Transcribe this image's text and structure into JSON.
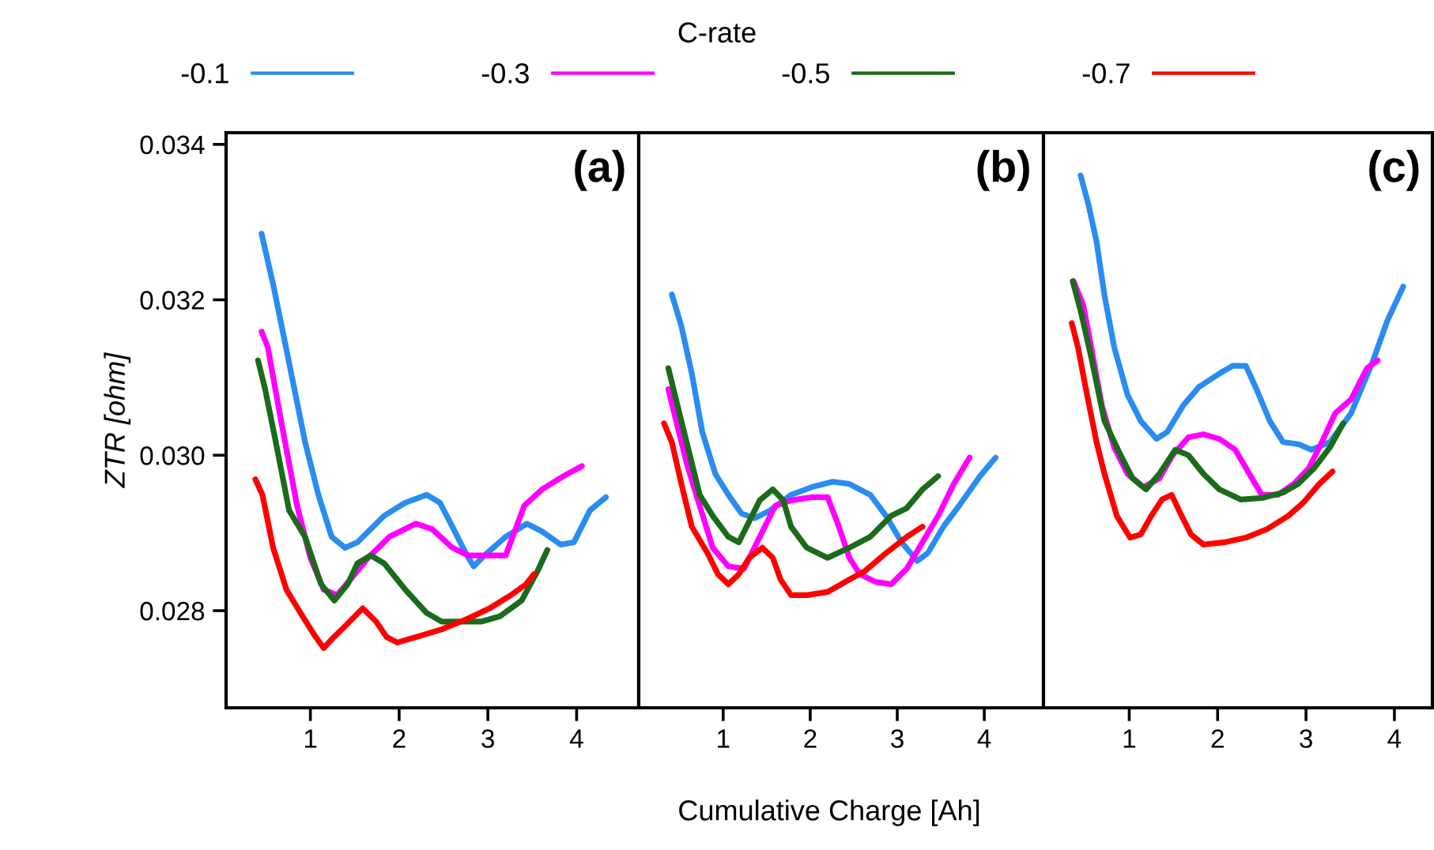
{
  "chart_data": [
    {
      "type": "line",
      "ylabel": "ZTR [ohm]",
      "legend_title": "C-rate",
      "legend": "top",
      "annotations": [
        "(a)"
      ],
      "xlim": [
        0.05,
        4.7
      ],
      "xticks": [
        1,
        2,
        3,
        4
      ],
      "ylim": [
        0.02675,
        0.03415
      ],
      "yticks": [
        {
          "value": 0.028,
          "label": "0.028"
        },
        {
          "value": 0.03,
          "label": "0.030"
        },
        {
          "value": 0.032,
          "label": "0.032"
        },
        {
          "value": 0.034,
          "label": "0.034"
        }
      ],
      "series": [
        {
          "name": "-0.1",
          "color": "#2a8cf0",
          "x": [
            0.45,
            0.58,
            0.76,
            0.94,
            1.09,
            1.24,
            1.39,
            1.53,
            1.83,
            2.07,
            2.31,
            2.46,
            2.6,
            2.75,
            2.84,
            2.96,
            3.2,
            3.44,
            3.61,
            3.82,
            3.97,
            4.15,
            4.33
          ],
          "values": [
            0.03285,
            0.0322,
            0.03119,
            0.03017,
            0.02949,
            0.02895,
            0.02881,
            0.02888,
            0.02922,
            0.02939,
            0.02949,
            0.02939,
            0.02908,
            0.02874,
            0.02857,
            0.02871,
            0.02895,
            0.02912,
            0.02902,
            0.02885,
            0.02888,
            0.02929,
            0.02946
          ]
        },
        {
          "name": "-0.3",
          "color": "#ff00ff",
          "x": [
            0.45,
            0.52,
            0.67,
            0.85,
            1.0,
            1.15,
            1.3,
            1.45,
            1.65,
            1.89,
            2.19,
            2.37,
            2.6,
            2.78,
            3.02,
            3.2,
            3.41,
            3.61,
            3.85,
            4.06
          ],
          "values": [
            0.03159,
            0.03139,
            0.03044,
            0.02935,
            0.02868,
            0.02827,
            0.0282,
            0.0284,
            0.02868,
            0.02895,
            0.02912,
            0.02905,
            0.02881,
            0.02871,
            0.02871,
            0.02871,
            0.02935,
            0.02956,
            0.02973,
            0.02986
          ]
        },
        {
          "name": "-0.5",
          "color": "#1a6b1a",
          "x": [
            0.41,
            0.49,
            0.61,
            0.76,
            0.94,
            1.12,
            1.27,
            1.42,
            1.53,
            1.68,
            1.83,
            2.07,
            2.31,
            2.48,
            2.72,
            2.93,
            3.14,
            3.38,
            3.56,
            3.67
          ],
          "values": [
            0.03122,
            0.03085,
            0.03017,
            0.02929,
            0.02895,
            0.02834,
            0.02813,
            0.02834,
            0.02861,
            0.02871,
            0.02861,
            0.02827,
            0.02797,
            0.02786,
            0.02786,
            0.02786,
            0.02793,
            0.02813,
            0.02851,
            0.02878
          ]
        },
        {
          "name": "-0.7",
          "color": "#ff0000",
          "x": [
            0.38,
            0.46,
            0.58,
            0.73,
            0.91,
            1.06,
            1.15,
            1.24,
            1.39,
            1.59,
            1.74,
            1.86,
            1.98,
            2.19,
            2.48,
            2.78,
            3.02,
            3.26,
            3.43,
            3.52
          ],
          "values": [
            0.02969,
            0.02949,
            0.02881,
            0.02827,
            0.02793,
            0.02766,
            0.02752,
            0.02763,
            0.0278,
            0.02803,
            0.02786,
            0.02766,
            0.02759,
            0.02766,
            0.02776,
            0.0279,
            0.02803,
            0.0282,
            0.02834,
            0.02847
          ]
        }
      ]
    },
    {
      "type": "line",
      "xlabel": "Cumulative Charge [Ah]",
      "annotations": [
        "(b)"
      ],
      "tick_labels": "x",
      "xlim": [
        0.03,
        4.68
      ],
      "xticks": [
        1,
        2,
        3,
        4
      ],
      "ylim": [
        0.02675,
        0.03415
      ],
      "series": [
        {
          "color": "#2a8cf0",
          "x": [
            0.41,
            0.52,
            0.64,
            0.76,
            0.91,
            1.06,
            1.21,
            1.36,
            1.54,
            1.78,
            2.02,
            2.26,
            2.45,
            2.69,
            2.87,
            3.05,
            3.23,
            3.35,
            3.53,
            3.71,
            3.95,
            4.13
          ],
          "values": [
            0.03207,
            0.03166,
            0.03105,
            0.0303,
            0.02976,
            0.02949,
            0.02925,
            0.02919,
            0.02929,
            0.02949,
            0.02959,
            0.02966,
            0.02963,
            0.02949,
            0.02922,
            0.02888,
            0.02864,
            0.02874,
            0.02908,
            0.02935,
            0.02973,
            0.02997
          ]
        },
        {
          "color": "#ff00ff",
          "x": [
            0.37,
            0.46,
            0.58,
            0.73,
            0.88,
            1.06,
            1.24,
            1.42,
            1.6,
            1.78,
            2.02,
            2.2,
            2.33,
            2.45,
            2.57,
            2.75,
            2.93,
            3.11,
            3.29,
            3.47,
            3.65,
            3.83
          ],
          "values": [
            0.03085,
            0.03044,
            0.0299,
            0.02935,
            0.02881,
            0.02857,
            0.02854,
            0.02895,
            0.02935,
            0.02942,
            0.02946,
            0.02946,
            0.02908,
            0.02868,
            0.02847,
            0.02837,
            0.02834,
            0.02854,
            0.02888,
            0.02922,
            0.02963,
            0.02997
          ]
        },
        {
          "color": "#1a6b1a",
          "x": [
            0.37,
            0.46,
            0.58,
            0.73,
            0.88,
            1.06,
            1.18,
            1.3,
            1.42,
            1.57,
            1.69,
            1.78,
            1.96,
            2.2,
            2.45,
            2.69,
            2.93,
            3.11,
            3.29,
            3.47
          ],
          "values": [
            0.03112,
            0.03071,
            0.03017,
            0.02949,
            0.02922,
            0.02895,
            0.02888,
            0.02915,
            0.02942,
            0.02956,
            0.02942,
            0.02908,
            0.02881,
            0.02868,
            0.02881,
            0.02895,
            0.02922,
            0.02932,
            0.02956,
            0.02973
          ]
        },
        {
          "color": "#ff0000",
          "x": [
            0.32,
            0.41,
            0.52,
            0.64,
            0.82,
            0.94,
            1.06,
            1.18,
            1.3,
            1.45,
            1.57,
            1.66,
            1.78,
            1.96,
            2.2,
            2.45,
            2.63,
            2.87,
            3.11,
            3.29
          ],
          "values": [
            0.03041,
            0.03017,
            0.02963,
            0.02908,
            0.02874,
            0.02847,
            0.02834,
            0.02847,
            0.02868,
            0.02881,
            0.02868,
            0.0284,
            0.0282,
            0.0282,
            0.02824,
            0.0284,
            0.02851,
            0.02874,
            0.02895,
            0.02908
          ]
        }
      ]
    },
    {
      "type": "line",
      "annotations": [
        "(c)"
      ],
      "tick_labels": "x",
      "xlim": [
        0.03,
        4.43
      ],
      "xticks": [
        1,
        2,
        3,
        4
      ],
      "ylim": [
        0.02675,
        0.03415
      ],
      "series": [
        {
          "color": "#2a8cf0",
          "x": [
            0.45,
            0.54,
            0.63,
            0.72,
            0.83,
            0.98,
            1.13,
            1.31,
            1.43,
            1.61,
            1.79,
            2.02,
            2.17,
            2.32,
            2.44,
            2.59,
            2.74,
            2.92,
            3.06,
            3.27,
            3.51,
            3.75,
            3.92,
            4.1
          ],
          "values": [
            0.0336,
            0.03322,
            0.03275,
            0.03206,
            0.03139,
            0.03078,
            0.03044,
            0.03021,
            0.0303,
            0.03064,
            0.03088,
            0.03105,
            0.03115,
            0.03115,
            0.03085,
            0.03044,
            0.03017,
            0.03014,
            0.03007,
            0.03017,
            0.03054,
            0.03119,
            0.03173,
            0.03217
          ]
        },
        {
          "color": "#ff00ff",
          "x": [
            0.37,
            0.48,
            0.57,
            0.69,
            0.83,
            0.98,
            1.16,
            1.34,
            1.49,
            1.67,
            1.84,
            2.02,
            2.2,
            2.38,
            2.5,
            2.68,
            2.86,
            3.03,
            3.18,
            3.33,
            3.51,
            3.69,
            3.81
          ],
          "values": [
            0.03224,
            0.03193,
            0.03139,
            0.03064,
            0.0301,
            0.02976,
            0.02959,
            0.0297,
            0.03,
            0.03023,
            0.03027,
            0.03021,
            0.03007,
            0.02972,
            0.02949,
            0.02949,
            0.02963,
            0.02983,
            0.03017,
            0.03054,
            0.03072,
            0.03112,
            0.03122
          ]
        },
        {
          "color": "#1a6b1a",
          "x": [
            0.36,
            0.45,
            0.57,
            0.72,
            0.89,
            1.04,
            1.19,
            1.34,
            1.52,
            1.67,
            1.84,
            2.02,
            2.26,
            2.5,
            2.74,
            2.91,
            3.09,
            3.27,
            3.42
          ],
          "values": [
            0.03224,
            0.03186,
            0.03126,
            0.03044,
            0.03003,
            0.0297,
            0.02956,
            0.02976,
            0.03007,
            0.03,
            0.02976,
            0.02956,
            0.02943,
            0.02945,
            0.02952,
            0.02963,
            0.02983,
            0.0301,
            0.03041
          ]
        },
        {
          "color": "#ff0000",
          "x": [
            0.35,
            0.42,
            0.51,
            0.63,
            0.72,
            0.86,
            1.01,
            1.13,
            1.25,
            1.37,
            1.48,
            1.58,
            1.7,
            1.84,
            2.08,
            2.32,
            2.56,
            2.8,
            2.97,
            3.15,
            3.3
          ],
          "values": [
            0.0317,
            0.03139,
            0.03085,
            0.03017,
            0.02976,
            0.02922,
            0.02894,
            0.02898,
            0.02922,
            0.02943,
            0.02949,
            0.02925,
            0.02898,
            0.02885,
            0.02888,
            0.02894,
            0.02905,
            0.02922,
            0.02939,
            0.02963,
            0.02979
          ]
        }
      ]
    }
  ]
}
